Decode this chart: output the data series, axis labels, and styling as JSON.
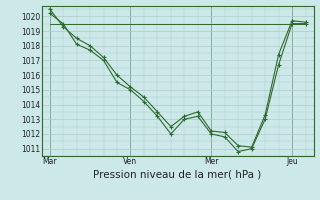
{
  "background_color": "#cce8e8",
  "grid_color": "#aacccc",
  "line_color": "#2d6a2d",
  "marker_color": "#2d6a2d",
  "title": "Pression niveau de la mer( hPa )",
  "ylim": [
    1010.5,
    1020.7
  ],
  "yticks": [
    1011,
    1012,
    1013,
    1014,
    1015,
    1016,
    1017,
    1018,
    1019,
    1020
  ],
  "xtick_labels": [
    "Mar",
    "Ven",
    "Mer",
    "Jeu"
  ],
  "xtick_positions": [
    0,
    3,
    6,
    9
  ],
  "series1_x": [
    0,
    0.5,
    1,
    1.5,
    2,
    2.5,
    3,
    3.5,
    4,
    4.5,
    5,
    5.5,
    6,
    6.5,
    7,
    7.5,
    8,
    8.5,
    9,
    9.5
  ],
  "series1_y": [
    1020.2,
    1019.5,
    1018.1,
    1017.7,
    1017.0,
    1015.5,
    1015.0,
    1014.2,
    1013.2,
    1012.0,
    1013.0,
    1013.2,
    1012.0,
    1011.8,
    1010.8,
    1011.0,
    1013.0,
    1016.7,
    1019.5,
    1019.5
  ],
  "series2_x": [
    0,
    0.5,
    1,
    1.5,
    2,
    2.5,
    3,
    3.5,
    4,
    4.5,
    5,
    5.5,
    6,
    6.5,
    7,
    7.5,
    8,
    8.5,
    9,
    9.5
  ],
  "series2_y": [
    1020.5,
    1019.3,
    1018.5,
    1018.0,
    1017.2,
    1016.0,
    1015.2,
    1014.5,
    1013.5,
    1012.5,
    1013.2,
    1013.5,
    1012.2,
    1012.1,
    1011.2,
    1011.1,
    1013.3,
    1017.4,
    1019.7,
    1019.6
  ],
  "series3_x": [
    0,
    3.5,
    7.5,
    9.5
  ],
  "series3_y": [
    1019.5,
    1019.5,
    1019.5,
    1019.5
  ],
  "vlines_x": [
    0,
    3,
    6,
    9
  ],
  "fontsize_ticks": 5.5,
  "fontsize_xlabel": 7.5
}
